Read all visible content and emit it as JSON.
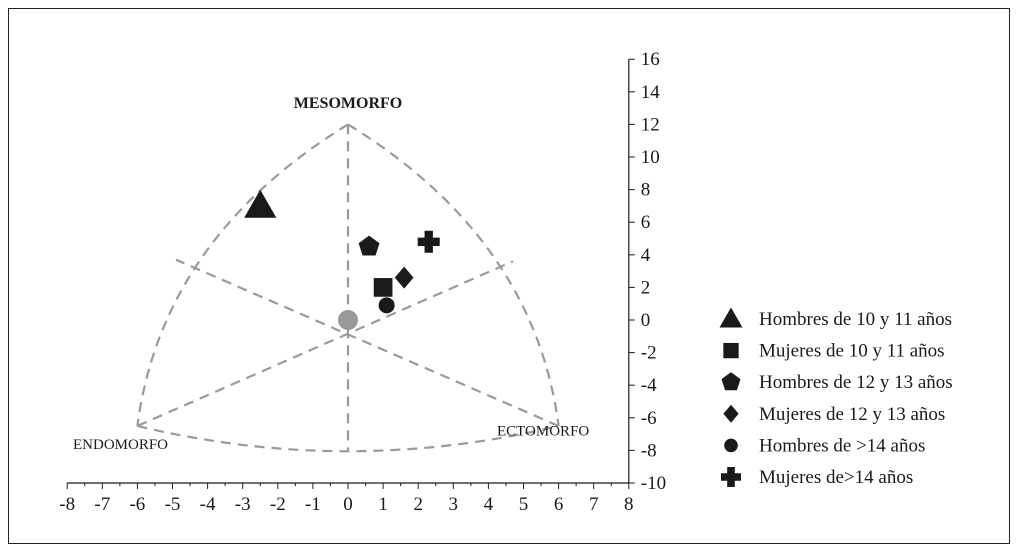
{
  "chart_data": {
    "type": "scatter",
    "title": "",
    "xlim": [
      -8,
      8
    ],
    "ylim": [
      -10,
      16
    ],
    "x_ticks": [
      "-8",
      "-7",
      "-6",
      "-5",
      "-4",
      "-3",
      "-2",
      "-1",
      "0",
      "1",
      "2",
      "3",
      "4",
      "5",
      "6",
      "7",
      "8"
    ],
    "y_ticks": [
      "16",
      "14",
      "12",
      "10",
      "8",
      "6",
      "4",
      "2",
      "0",
      "-2",
      "-4",
      "-6",
      "-8",
      "-10"
    ],
    "x_tick_values": [
      -8,
      -7,
      -6,
      -5,
      -4,
      -3,
      -2,
      -1,
      0,
      1,
      2,
      3,
      4,
      5,
      6,
      7,
      8
    ],
    "y_tick_values": [
      16,
      14,
      12,
      10,
      8,
      6,
      4,
      2,
      0,
      -2,
      -4,
      -6,
      -8,
      -10
    ],
    "region_labels": {
      "top": "MESOMORFO",
      "left": "ENDOMORFO",
      "right": "ECTOMORFO"
    },
    "somatochart": {
      "top": [
        0,
        12
      ],
      "left": [
        -6,
        -6.5
      ],
      "right": [
        6,
        -6.5
      ],
      "center_marker": [
        0,
        0
      ]
    },
    "series": [
      {
        "name": "Hombres de 10 y 11 años",
        "marker": "triangle",
        "x": -2.5,
        "y": 7
      },
      {
        "name": "Mujeres de 10 y 11 años",
        "marker": "square",
        "x": 1,
        "y": 2
      },
      {
        "name": "Hombres de 12 y 13 años",
        "marker": "pentagon",
        "x": 0.6,
        "y": 4.5
      },
      {
        "name": "Mujeres de 12 y 13 años",
        "marker": "diamond",
        "x": 1.6,
        "y": 2.6
      },
      {
        "name": "Hombres de >14 años",
        "marker": "circle",
        "x": 1.1,
        "y": 0.9
      },
      {
        "name": "Mujeres de>14 años",
        "marker": "cross",
        "x": 2.3,
        "y": 4.8
      }
    ],
    "colors": {
      "marker": "#1a1a1a",
      "center_marker": "#999999",
      "guide_lines": "#9a9a9a",
      "axis": "#1a1a1a"
    }
  }
}
